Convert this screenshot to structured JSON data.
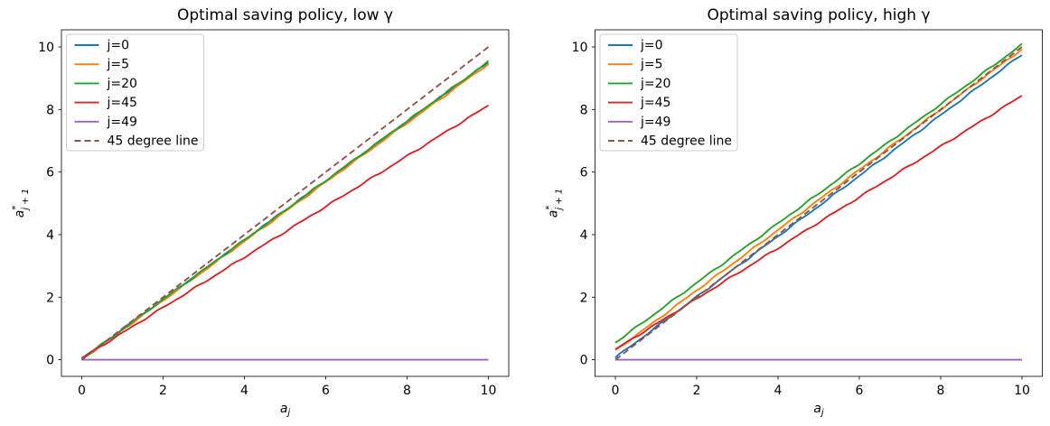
{
  "figure": {
    "background": "#ffffff"
  },
  "colors": {
    "blue": "#1f77b4",
    "orange": "#ff7f0e",
    "green": "#2ca02c",
    "red": "#d62728",
    "purple": "#9467bd",
    "brown": "#8c564b",
    "axes_frame": "#000000",
    "legend_border": "#cccccc"
  },
  "chart_data": [
    {
      "id": "low-gamma",
      "type": "line",
      "title": "Optimal saving policy, low γ",
      "xlabel": {
        "base": "a",
        "sub": "j"
      },
      "ylabel": {
        "base": "a",
        "sup": "*",
        "sub": "j + 1"
      },
      "xlim": [
        -0.5,
        10.5
      ],
      "ylim": [
        -0.5,
        10.5
      ],
      "xticks": [
        "0",
        "2",
        "4",
        "6",
        "8",
        "10"
      ],
      "yticks": [
        "0",
        "2",
        "4",
        "6",
        "8",
        "10"
      ],
      "grid": false,
      "legend_position": "upper left",
      "x": [
        0,
        1,
        2,
        3,
        4,
        5,
        6,
        7,
        8,
        9,
        10
      ],
      "series": [
        {
          "name": "j=0",
          "color": "#1f77b4",
          "style": "solid",
          "noisy": true,
          "values": [
            0.02,
            0.97,
            1.92,
            2.87,
            3.82,
            4.77,
            5.71,
            6.66,
            7.61,
            8.56,
            9.51
          ]
        },
        {
          "name": "j=5",
          "color": "#ff7f0e",
          "style": "solid",
          "noisy": true,
          "values": [
            0.01,
            0.95,
            1.9,
            2.84,
            3.79,
            4.73,
            5.68,
            6.62,
            7.57,
            8.51,
            9.46
          ]
        },
        {
          "name": "j=20",
          "color": "#2ca02c",
          "style": "solid",
          "noisy": true,
          "values": [
            0.02,
            0.97,
            1.93,
            2.88,
            3.83,
            4.78,
            5.73,
            6.68,
            7.63,
            8.58,
            9.53
          ]
        },
        {
          "name": "j=45",
          "color": "#d62728",
          "style": "solid",
          "noisy": true,
          "values": [
            0.05,
            0.86,
            1.67,
            2.47,
            3.28,
            4.09,
            4.9,
            5.7,
            6.51,
            7.32,
            8.13
          ]
        },
        {
          "name": "j=49",
          "color": "#9467bd",
          "style": "solid",
          "noisy": false,
          "values": [
            0,
            0,
            0,
            0,
            0,
            0,
            0,
            0,
            0,
            0,
            0
          ]
        },
        {
          "name": "45 degree line",
          "color": "#8c564b",
          "style": "dashed",
          "noisy": false,
          "values": [
            0,
            1,
            2,
            3,
            4,
            5,
            6,
            7,
            8,
            9,
            10
          ]
        }
      ]
    },
    {
      "id": "high-gamma",
      "type": "line",
      "title": "Optimal saving policy, high γ",
      "xlabel": {
        "base": "a",
        "sub": "j"
      },
      "ylabel": {
        "base": "a",
        "sup": "*",
        "sub": "j + 1"
      },
      "xlim": [
        -0.5,
        10.5
      ],
      "ylim": [
        -0.5,
        10.5
      ],
      "xticks": [
        "0",
        "2",
        "4",
        "6",
        "8",
        "10"
      ],
      "yticks": [
        "0",
        "2",
        "4",
        "6",
        "8",
        "10"
      ],
      "grid": false,
      "legend_position": "upper left",
      "x": [
        0,
        1,
        2,
        3,
        4,
        5,
        6,
        7,
        8,
        9,
        10
      ],
      "series": [
        {
          "name": "j=0",
          "color": "#1f77b4",
          "style": "solid",
          "noisy": true,
          "values": [
            0.07,
            1.04,
            2.01,
            2.98,
            3.95,
            4.91,
            5.88,
            6.85,
            7.82,
            8.79,
            9.76
          ]
        },
        {
          "name": "j=5",
          "color": "#ff7f0e",
          "style": "solid",
          "noisy": true,
          "values": [
            0.29,
            1.25,
            2.22,
            3.18,
            4.15,
            5.11,
            6.07,
            7.04,
            8.0,
            8.97,
            9.93
          ]
        },
        {
          "name": "j=20",
          "color": "#2ca02c",
          "style": "solid",
          "noisy": true,
          "values": [
            0.55,
            1.5,
            2.46,
            3.41,
            4.36,
            5.31,
            6.27,
            7.22,
            8.17,
            9.12,
            10.08
          ]
        },
        {
          "name": "j=45",
          "color": "#d62728",
          "style": "solid",
          "noisy": true,
          "values": [
            0.33,
            1.14,
            1.95,
            2.76,
            3.57,
            4.39,
            5.2,
            6.01,
            6.82,
            7.63,
            8.44
          ]
        },
        {
          "name": "j=49",
          "color": "#9467bd",
          "style": "solid",
          "noisy": false,
          "values": [
            0,
            0,
            0,
            0,
            0,
            0,
            0,
            0,
            0,
            0,
            0
          ]
        },
        {
          "name": "45 degree line",
          "color": "#8c564b",
          "style": "dashed",
          "noisy": false,
          "values": [
            0,
            1,
            2,
            3,
            4,
            5,
            6,
            7,
            8,
            9,
            10
          ]
        }
      ]
    }
  ]
}
